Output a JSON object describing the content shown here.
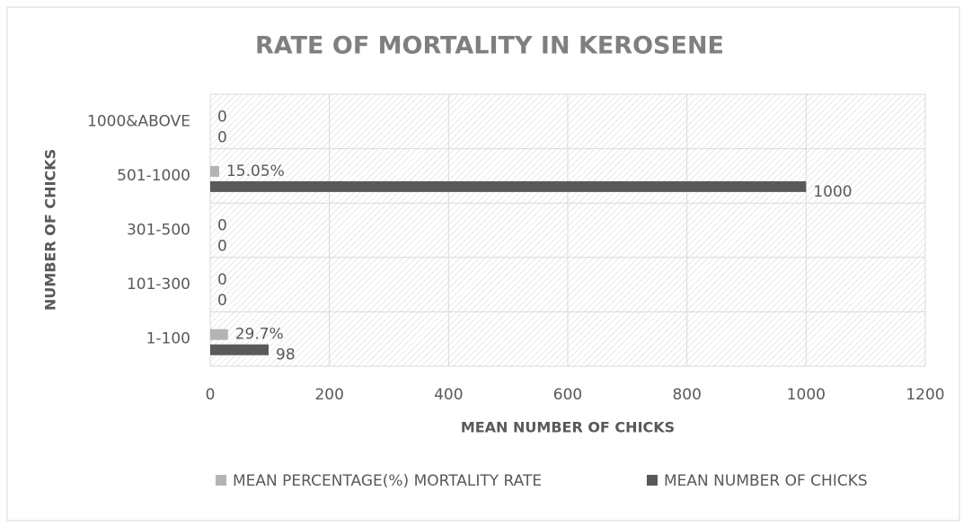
{
  "chart_data": {
    "type": "hbar",
    "title": "RATE OF MORTALITY IN KEROSENE",
    "x_label": "MEAN NUMBER OF CHICKS",
    "y_label": "NUMBER OF CHICKS",
    "categories": [
      "1-100",
      "101-300",
      "301-500",
      "501-1000",
      "1000&ABOVE"
    ],
    "series": [
      {
        "name": "MEAN PERCENTAGE(%) MORTALITY RATE",
        "color": "#b4b4b4",
        "values": [
          29.7,
          0,
          0,
          15.05,
          0
        ],
        "value_labels": [
          "29.7%",
          "0",
          "0",
          "15.05%",
          "0"
        ]
      },
      {
        "name": "MEAN NUMBER OF CHICKS",
        "color": "#595959",
        "values": [
          98,
          0,
          0,
          1000,
          0
        ]
      }
    ],
    "xlim": [
      0,
      1200
    ],
    "xticks": [
      0,
      200,
      400,
      600,
      800,
      1000,
      1200
    ],
    "grid": true,
    "legend": "bottom"
  }
}
